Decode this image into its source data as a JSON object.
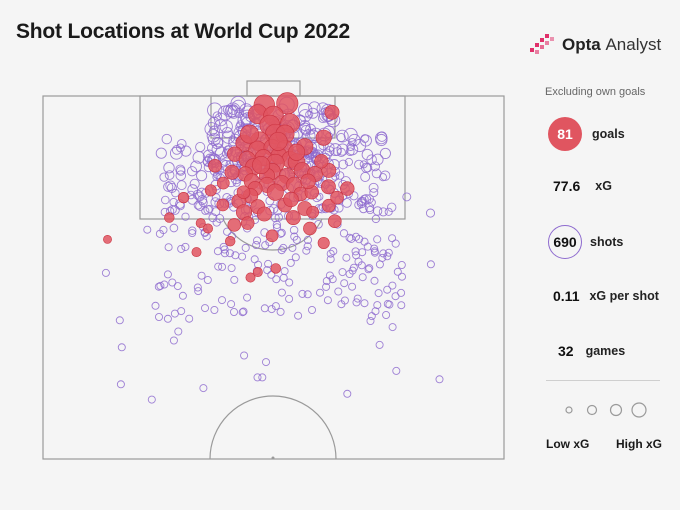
{
  "header": {
    "title": "Shot Locations at World Cup 2022",
    "brand_name": "Opta",
    "brand_suffix": "Analyst"
  },
  "colors": {
    "goal": "#e05560",
    "shot": "#8e6bcf",
    "pitch_line": "#9a9a9a",
    "background": "#f5f5f5"
  },
  "sidebar": {
    "note": "Excluding own goals",
    "stats": [
      {
        "value": "81",
        "label": "goals"
      },
      {
        "value": "77.6",
        "label": "xG"
      },
      {
        "value": "690",
        "label": "shots"
      },
      {
        "value": "0.11",
        "label": "xG per shot"
      },
      {
        "value": "32",
        "label": "games"
      }
    ],
    "legend_low": "Low xG",
    "legend_high": "High xG"
  },
  "chart_data": {
    "type": "scatter",
    "title": "Shot Locations at World Cup 2022",
    "x_unit": "pitch width, 0-100",
    "y_unit": "distance from goal line, 0-100 (half pitch)",
    "size_encoding": "xG",
    "goals": [
      {
        "x": 48.0,
        "y": 2.5,
        "xg": 0.55
      },
      {
        "x": 53.0,
        "y": 2.0,
        "xg": 0.6
      },
      {
        "x": 46.6,
        "y": 5.0,
        "xg": 0.45
      },
      {
        "x": 50.0,
        "y": 5.5,
        "xg": 0.5
      },
      {
        "x": 49.2,
        "y": 8.0,
        "xg": 0.5
      },
      {
        "x": 53.6,
        "y": 7.5,
        "xg": 0.45
      },
      {
        "x": 62.7,
        "y": 4.5,
        "xg": 0.2
      },
      {
        "x": 50.4,
        "y": 10.5,
        "xg": 0.5
      },
      {
        "x": 47.0,
        "y": 12.5,
        "xg": 0.45
      },
      {
        "x": 52.5,
        "y": 10.5,
        "xg": 0.4
      },
      {
        "x": 43.6,
        "y": 13.0,
        "xg": 0.3
      },
      {
        "x": 56.8,
        "y": 14.0,
        "xg": 0.3
      },
      {
        "x": 46.5,
        "y": 14.8,
        "xg": 0.35
      },
      {
        "x": 49.7,
        "y": 14.2,
        "xg": 0.3
      },
      {
        "x": 52.5,
        "y": 14.5,
        "xg": 0.3
      },
      {
        "x": 51.2,
        "y": 16.5,
        "xg": 0.3
      },
      {
        "x": 41.6,
        "y": 16.0,
        "xg": 0.22
      },
      {
        "x": 44.3,
        "y": 17.5,
        "xg": 0.3
      },
      {
        "x": 47.8,
        "y": 17.0,
        "xg": 0.3
      },
      {
        "x": 53.6,
        "y": 17.5,
        "xg": 0.3
      },
      {
        "x": 55.0,
        "y": 18.2,
        "xg": 0.32
      },
      {
        "x": 50.4,
        "y": 18.5,
        "xg": 0.38
      },
      {
        "x": 45.7,
        "y": 19.5,
        "xg": 0.3
      },
      {
        "x": 49.7,
        "y": 20.8,
        "xg": 0.3
      },
      {
        "x": 56.2,
        "y": 20.5,
        "xg": 0.28
      },
      {
        "x": 48.6,
        "y": 22.0,
        "xg": 0.25
      },
      {
        "x": 43.9,
        "y": 21.5,
        "xg": 0.22
      },
      {
        "x": 52.9,
        "y": 22.0,
        "xg": 0.26
      },
      {
        "x": 59.0,
        "y": 21.5,
        "xg": 0.25
      },
      {
        "x": 62.0,
        "y": 20.5,
        "xg": 0.2
      },
      {
        "x": 37.3,
        "y": 19.2,
        "xg": 0.15
      },
      {
        "x": 45.3,
        "y": 23.5,
        "xg": 0.25
      },
      {
        "x": 51.8,
        "y": 24.0,
        "xg": 0.25
      },
      {
        "x": 48.6,
        "y": 24.5,
        "xg": 0.25
      },
      {
        "x": 54.5,
        "y": 24.5,
        "xg": 0.26
      },
      {
        "x": 46.0,
        "y": 25.5,
        "xg": 0.2
      },
      {
        "x": 60.4,
        "y": 18.0,
        "xg": 0.18
      },
      {
        "x": 39.1,
        "y": 24.0,
        "xg": 0.12
      },
      {
        "x": 45.0,
        "y": 27.5,
        "xg": 0.22
      },
      {
        "x": 50.4,
        "y": 26.5,
        "xg": 0.3
      },
      {
        "x": 55.9,
        "y": 27.0,
        "xg": 0.18
      },
      {
        "x": 58.3,
        "y": 26.5,
        "xg": 0.18
      },
      {
        "x": 46.6,
        "y": 30.5,
        "xg": 0.2
      },
      {
        "x": 52.5,
        "y": 30.0,
        "xg": 0.2
      },
      {
        "x": 56.8,
        "y": 31.0,
        "xg": 0.2
      },
      {
        "x": 61.9,
        "y": 25.0,
        "xg": 0.2
      },
      {
        "x": 66.0,
        "y": 25.5,
        "xg": 0.18
      },
      {
        "x": 42.5,
        "y": 29.0,
        "xg": 0.2
      },
      {
        "x": 36.4,
        "y": 26.0,
        "xg": 0.1
      },
      {
        "x": 43.6,
        "y": 32.0,
        "xg": 0.25
      },
      {
        "x": 48.0,
        "y": 32.5,
        "xg": 0.2
      },
      {
        "x": 54.3,
        "y": 33.5,
        "xg": 0.2
      },
      {
        "x": 62.0,
        "y": 30.2,
        "xg": 0.15
      },
      {
        "x": 63.3,
        "y": 34.5,
        "xg": 0.15
      },
      {
        "x": 57.9,
        "y": 36.5,
        "xg": 0.15
      },
      {
        "x": 41.5,
        "y": 35.5,
        "xg": 0.15
      },
      {
        "x": 44.4,
        "y": 35.0,
        "xg": 0.15
      },
      {
        "x": 27.4,
        "y": 33.5,
        "xg": 0.06
      },
      {
        "x": 34.2,
        "y": 35.0,
        "xg": 0.05
      },
      {
        "x": 40.6,
        "y": 40.0,
        "xg": 0.06
      },
      {
        "x": 60.9,
        "y": 40.5,
        "xg": 0.1
      },
      {
        "x": 49.7,
        "y": 38.5,
        "xg": 0.12
      },
      {
        "x": 33.3,
        "y": 43.0,
        "xg": 0.05
      },
      {
        "x": 45.0,
        "y": 50.0,
        "xg": 0.05
      },
      {
        "x": 14.0,
        "y": 39.5,
        "xg": 0.03
      },
      {
        "x": 46.6,
        "y": 48.5,
        "xg": 0.05
      },
      {
        "x": 50.5,
        "y": 47.5,
        "xg": 0.06
      },
      {
        "x": 35.8,
        "y": 36.5,
        "xg": 0.05
      },
      {
        "x": 39.0,
        "y": 30.0,
        "xg": 0.12
      },
      {
        "x": 58.5,
        "y": 32.0,
        "xg": 0.12
      },
      {
        "x": 30.5,
        "y": 28.0,
        "xg": 0.08
      },
      {
        "x": 63.8,
        "y": 28.0,
        "xg": 0.15
      },
      {
        "x": 47.3,
        "y": 19.0,
        "xg": 0.35
      },
      {
        "x": 51.0,
        "y": 12.5,
        "xg": 0.4
      },
      {
        "x": 57.5,
        "y": 23.5,
        "xg": 0.22
      },
      {
        "x": 41.0,
        "y": 21.0,
        "xg": 0.2
      },
      {
        "x": 55.0,
        "y": 15.5,
        "xg": 0.3
      },
      {
        "x": 44.8,
        "y": 10.5,
        "xg": 0.4
      },
      {
        "x": 60.9,
        "y": 11.5,
        "xg": 0.25
      },
      {
        "x": 43.5,
        "y": 26.5,
        "xg": 0.15
      },
      {
        "x": 53.8,
        "y": 28.5,
        "xg": 0.22
      }
    ]
  }
}
